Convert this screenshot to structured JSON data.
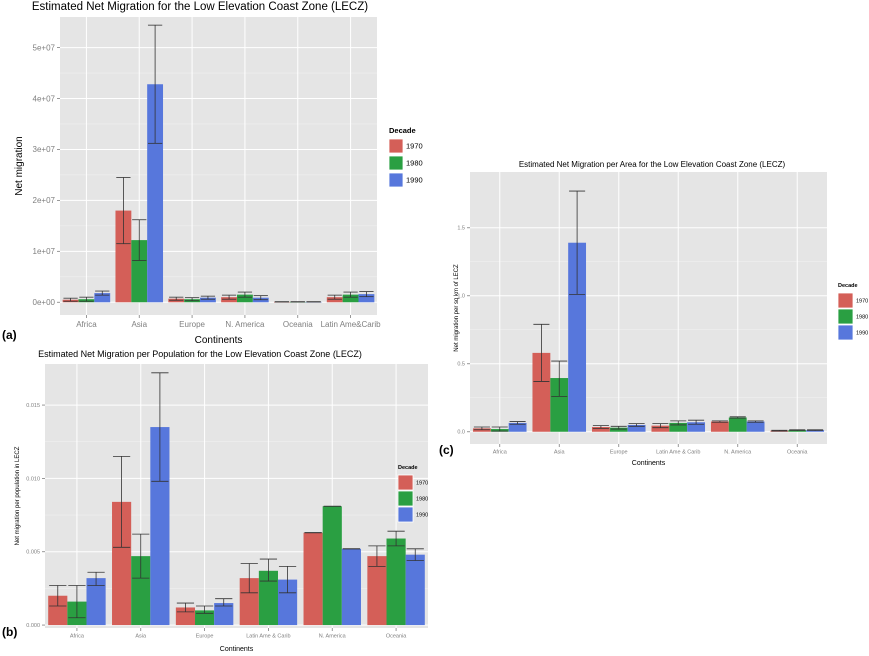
{
  "panel_labels": [
    "(a)",
    "(b)",
    "(c)"
  ],
  "colors": {
    "1970": "#d45f58",
    "1980": "#2a9f42",
    "1990": "#5777dc",
    "panel_bg": "#e5e5e5",
    "grid": "#ffffff"
  },
  "chart_data": [
    {
      "id": "a",
      "type": "bar",
      "title": "Estimated Net Migration for the Low Elevation Coast Zone (LECZ)",
      "xlabel": "Continents",
      "ylabel": "Net migration",
      "categories": [
        "Africa",
        "Asia",
        "Europe",
        "N. America",
        "Oceania",
        "Latin Ame&Carib"
      ],
      "ylim": [
        -2500000,
        56000000
      ],
      "yticks": [
        0,
        10000000,
        20000000,
        30000000,
        40000000,
        50000000
      ],
      "ytick_labels": [
        "0e+00",
        "1e+07",
        "2e+07",
        "3e+07",
        "4e+07",
        "5e+07"
      ],
      "legend_title": "Decade",
      "series": [
        {
          "name": "1970",
          "values": [
            500000,
            18000000,
            700000,
            1000000,
            80000,
            1000000
          ],
          "err_low": [
            200000,
            11500000,
            400000,
            600000,
            50000,
            600000
          ],
          "err_high": [
            800000,
            24500000,
            1000000,
            1400000,
            120000,
            1400000
          ]
        },
        {
          "name": "1980",
          "values": [
            600000,
            12200000,
            600000,
            1500000,
            80000,
            1500000
          ],
          "err_low": [
            200000,
            8200000,
            300000,
            1000000,
            50000,
            1000000
          ],
          "err_high": [
            1000000,
            16200000,
            900000,
            2000000,
            120000,
            2000000
          ]
        },
        {
          "name": "1990",
          "values": [
            1800000,
            42800000,
            900000,
            900000,
            80000,
            1600000
          ],
          "err_low": [
            1400000,
            31200000,
            600000,
            500000,
            50000,
            1100000
          ],
          "err_high": [
            2200000,
            54400000,
            1200000,
            1300000,
            120000,
            2100000
          ]
        }
      ]
    },
    {
      "id": "b",
      "type": "bar",
      "title": "Estimated Net Migration per Population for the Low Elevation Coast Zone (LECZ)",
      "xlabel": "Continents",
      "ylabel": "Net migration per population in LECZ",
      "categories": [
        "Africa",
        "Asia",
        "Europe",
        "Latin Ame & Carib",
        "N. America",
        "Oceania"
      ],
      "ylim": [
        -0.0002,
        0.0178
      ],
      "yticks": [
        0,
        0.005,
        0.01,
        0.015
      ],
      "ytick_labels": [
        "0.000",
        "0.005",
        "0.010",
        "0.015"
      ],
      "legend_title": "Decade",
      "series": [
        {
          "name": "1970",
          "values": [
            0.002,
            0.0084,
            0.0012,
            0.0032,
            0.0063,
            0.0047
          ],
          "err_low": [
            0.0013,
            0.0053,
            0.0009,
            0.0022,
            0.0063,
            0.004
          ],
          "err_high": [
            0.0027,
            0.0115,
            0.0015,
            0.0042,
            0.0063,
            0.0054
          ]
        },
        {
          "name": "1980",
          "values": [
            0.0016,
            0.0047,
            0.001,
            0.0037,
            0.0081,
            0.0059
          ],
          "err_low": [
            0.0005,
            0.0032,
            0.0008,
            0.003,
            0.0081,
            0.0054
          ],
          "err_high": [
            0.0027,
            0.0062,
            0.0013,
            0.0045,
            0.0081,
            0.0064
          ]
        },
        {
          "name": "1990",
          "values": [
            0.0032,
            0.0135,
            0.0015,
            0.0031,
            0.0052,
            0.0048
          ],
          "err_low": [
            0.0027,
            0.0098,
            0.0013,
            0.0022,
            0.0052,
            0.0044
          ],
          "err_high": [
            0.0036,
            0.0172,
            0.0018,
            0.004,
            0.0052,
            0.0052
          ]
        }
      ]
    },
    {
      "id": "c",
      "type": "bar",
      "title": "Estimated Net Migration per Area for the Low Elevation Coast Zone (LECZ)",
      "xlabel": "Continents",
      "ylabel": "Net migration per sq km of LECZ",
      "categories": [
        "Africa",
        "Asia",
        "Europe",
        "Latin Ame & Carib",
        "N. America",
        "Oceania"
      ],
      "ylim": [
        -0.09,
        1.91
      ],
      "yticks": [
        0,
        0.5,
        1.0,
        1.5
      ],
      "ytick_labels": [
        "0.0",
        "0.5",
        "1.0",
        "1.5"
      ],
      "legend_title": "Decade",
      "series": [
        {
          "name": "1970",
          "values": [
            0.025,
            0.58,
            0.035,
            0.045,
            0.075,
            0.008
          ],
          "err_low": [
            0.015,
            0.37,
            0.025,
            0.03,
            0.07,
            0.005
          ],
          "err_high": [
            0.035,
            0.79,
            0.045,
            0.06,
            0.08,
            0.011
          ]
        },
        {
          "name": "1980",
          "values": [
            0.02,
            0.395,
            0.03,
            0.065,
            0.105,
            0.012
          ],
          "err_low": [
            0.005,
            0.26,
            0.02,
            0.05,
            0.1,
            0.009
          ],
          "err_high": [
            0.035,
            0.52,
            0.04,
            0.08,
            0.11,
            0.015
          ]
        },
        {
          "name": "1990",
          "values": [
            0.065,
            1.39,
            0.05,
            0.07,
            0.075,
            0.012
          ],
          "err_low": [
            0.055,
            1.01,
            0.04,
            0.055,
            0.07,
            0.009
          ],
          "err_high": [
            0.075,
            1.77,
            0.06,
            0.085,
            0.08,
            0.015
          ]
        }
      ]
    }
  ]
}
